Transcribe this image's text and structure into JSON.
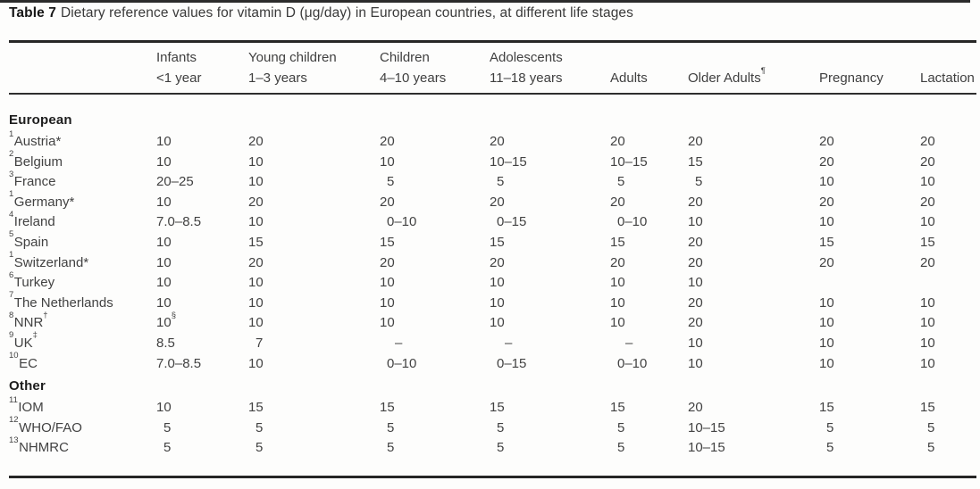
{
  "title": {
    "label": "Table 7",
    "text": "Dietary reference values for vitamin D (μg/day) in European countries, at different life stages"
  },
  "table": {
    "columns": [
      {
        "line1": "",
        "line2": ""
      },
      {
        "line1": "Infants",
        "line2": "<1 year"
      },
      {
        "line1": "Young children",
        "line2": "1–3 years"
      },
      {
        "line1": "Children",
        "line2": "4–10 years"
      },
      {
        "line1": "Adolescents",
        "line2": "11–18 years"
      },
      {
        "line1": "",
        "line2": "Adults"
      },
      {
        "line1": "",
        "line2": "Older Adults¶"
      },
      {
        "line1": "",
        "line2": "Pregnancy"
      },
      {
        "line1": "",
        "line2": "Lactation"
      }
    ],
    "sections": [
      {
        "heading": "European",
        "rows": [
          {
            "sup": "1",
            "label": "Austria*",
            "cells": [
              "10",
              "20",
              "20",
              "20",
              "20",
              "20",
              "20",
              "20"
            ]
          },
          {
            "sup": "2",
            "label": "Belgium",
            "cells": [
              "10",
              "10",
              "10",
              "10–15",
              "10–15",
              "15",
              "20",
              "20"
            ]
          },
          {
            "sup": "3",
            "label": "France",
            "cells": [
              "20–25",
              "10",
              "5",
              "5",
              "5",
              "5",
              "10",
              "10"
            ]
          },
          {
            "sup": "1",
            "label": "Germany*",
            "cells": [
              "10",
              "20",
              "20",
              "20",
              "20",
              "20",
              "20",
              "20"
            ]
          },
          {
            "sup": "4",
            "label": "Ireland",
            "cells": [
              "7.0–8.5",
              "10",
              "0–10",
              "0–15",
              "0–10",
              "10",
              "10",
              "10"
            ]
          },
          {
            "sup": "5",
            "label": "Spain",
            "cells": [
              "10",
              "15",
              "15",
              "15",
              "15",
              "20",
              "15",
              "15"
            ]
          },
          {
            "sup": "1",
            "label": "Switzerland*",
            "cells": [
              "10",
              "20",
              "20",
              "20",
              "20",
              "20",
              "20",
              "20"
            ]
          },
          {
            "sup": "6",
            "label": "Turkey",
            "cells": [
              "10",
              "10",
              "10",
              "10",
              "10",
              "10",
              "",
              ""
            ]
          },
          {
            "sup": "7",
            "label": "The Netherlands",
            "cells": [
              "10",
              "10",
              "10",
              "10",
              "10",
              "20",
              "10",
              "10"
            ]
          },
          {
            "sup": "8",
            "label": "NNR†",
            "cells": [
              "10§",
              "10",
              "10",
              "10",
              "10",
              "20",
              "10",
              "10"
            ]
          },
          {
            "sup": "9",
            "label": "UK‡",
            "cells": [
              "8.5",
              "7",
              "–",
              "–",
              "–",
              "10",
              "10",
              "10"
            ]
          },
          {
            "sup": "10",
            "label": "EC",
            "cells": [
              "7.0–8.5",
              "10",
              "0–10",
              "0–15",
              "0–10",
              "10",
              "10",
              "10"
            ]
          }
        ]
      },
      {
        "heading": "Other",
        "rows": [
          {
            "sup": "11",
            "label": "IOM",
            "cells": [
              "10",
              "15",
              "15",
              "15",
              "15",
              "20",
              "15",
              "15"
            ]
          },
          {
            "sup": "12",
            "label": "WHO/FAO",
            "cells": [
              "5",
              "5",
              "5",
              "5",
              "5",
              "10–15",
              "5",
              "5"
            ]
          },
          {
            "sup": "13",
            "label": "NHMRC",
            "cells": [
              "5",
              "5",
              "5",
              "5",
              "5",
              "10–15",
              "5",
              "5"
            ]
          }
        ]
      }
    ]
  }
}
